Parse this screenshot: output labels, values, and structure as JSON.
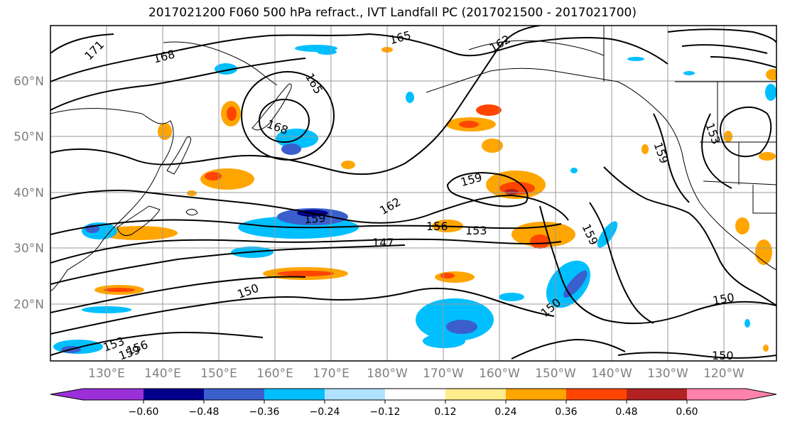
{
  "title": "2017021200 F060 500 hPa refract., IVT Landfall PC (2017021500 - 2017021700)",
  "latitude_labels": [
    "60°N",
    "50°N",
    "40°N",
    "30°N",
    "20°N"
  ],
  "longitude_labels": [
    "130°E",
    "140°E",
    "150°E",
    "160°E",
    "170°E",
    "180°W",
    "170°W",
    "160°W",
    "150°W",
    "140°W",
    "130°W",
    "120°W"
  ],
  "contour_labels": [
    "171",
    "168",
    "165",
    "162",
    "165",
    "168",
    "159",
    "162",
    "159",
    "156",
    "153",
    "147",
    "159",
    "150",
    "150",
    "153",
    "156",
    "159",
    "150",
    "150",
    "159",
    "153"
  ],
  "colorbar": {
    "tick_labels": [
      "−0.60",
      "−0.48",
      "−0.36",
      "−0.24",
      "−0.12",
      "0.12",
      "0.24",
      "0.36",
      "0.48",
      "0.60"
    ],
    "colors": [
      "#9b30d9",
      "#00008b",
      "#3a5fcd",
      "#00bfff",
      "#b0e2ff",
      "#ffffff",
      "#ffec8b",
      "#ffa500",
      "#ff4500",
      "#b22222",
      "#ff82ab"
    ]
  }
}
